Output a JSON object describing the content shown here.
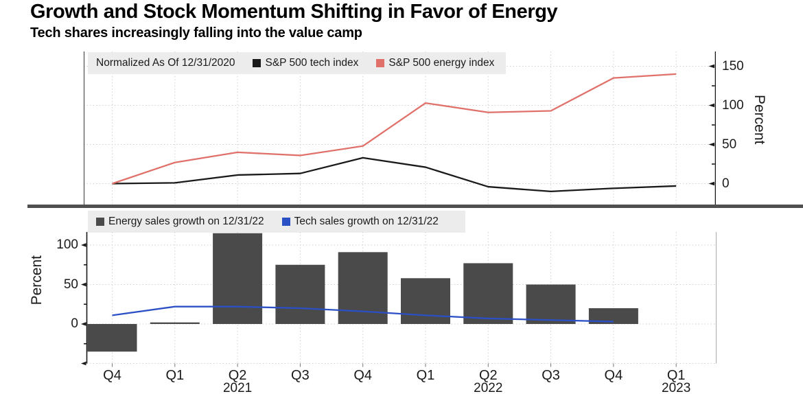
{
  "header": {
    "title": "Growth and Stock Momentum Shifting in Favor of Energy",
    "subtitle": "Tech shares increasingly falling into the value camp"
  },
  "colors": {
    "tech_index_line": "#1a1a1a",
    "energy_index_line": "#e0716a",
    "energy_bar": "#4a4a4a",
    "tech_sales_line": "#2b50c6",
    "legend_background": "#ececec",
    "gridline": "#cfcfcf",
    "axis": "#1a1a1a",
    "separator": "#4f4f4f"
  },
  "chart_data": [
    {
      "type": "line",
      "panel": "top",
      "legend_note": "Normalized As Of 12/31/2020",
      "categories": [
        "Q4 2020",
        "Q1 2021",
        "Q2 2021",
        "Q3 2021",
        "Q4 2021",
        "Q1 2022",
        "Q2 2022",
        "Q3 2022",
        "Q4 2022",
        "Q1 2023"
      ],
      "series": [
        {
          "name": "S&P 500 tech index",
          "color": "#1a1a1a",
          "values": [
            0,
            1,
            11,
            13,
            33,
            21,
            -4,
            -10,
            -6,
            -3
          ]
        },
        {
          "name": "S&P 500 energy index",
          "color": "#e0716a",
          "values": [
            0,
            27,
            40,
            36,
            48,
            103,
            91,
            93,
            135,
            140
          ]
        }
      ],
      "ylabel": "Percent",
      "y_axis_side": "right",
      "yticks": [
        0,
        50,
        100,
        150
      ],
      "minor_yticks": [
        25,
        75,
        125
      ],
      "ylim": [
        -27,
        169
      ],
      "grid": true,
      "legend_position": "top-left"
    },
    {
      "type": "bar+line",
      "panel": "bottom",
      "categories": [
        "Q4",
        "Q1",
        "Q2",
        "Q3",
        "Q4",
        "Q1",
        "Q2",
        "Q3",
        "Q4",
        "Q1"
      ],
      "year_labels": [
        {
          "under_index": 2,
          "label": "2021"
        },
        {
          "under_index": 6,
          "label": "2022"
        },
        {
          "under_index": 9,
          "label": "2023"
        }
      ],
      "series": [
        {
          "name": "Energy sales growth on 12/31/22",
          "type": "bar",
          "color": "#4a4a4a",
          "values": [
            -35,
            2,
            115,
            75,
            91,
            58,
            77,
            50,
            20,
            null
          ]
        },
        {
          "name": "Tech sales growth on 12/31/22",
          "type": "line",
          "color": "#2b50c6",
          "values": [
            11,
            22,
            22,
            20,
            16,
            11,
            7,
            5,
            3,
            null
          ]
        }
      ],
      "ylabel": "Percent",
      "y_axis_side": "left",
      "yticks": [
        -50,
        0,
        50,
        100
      ],
      "labeled_yticks": [
        0,
        50,
        100
      ],
      "minor_yticks": [
        -25,
        25,
        75
      ],
      "ylim": [
        -51,
        117
      ],
      "grid": true,
      "legend_position": "top-left"
    }
  ]
}
